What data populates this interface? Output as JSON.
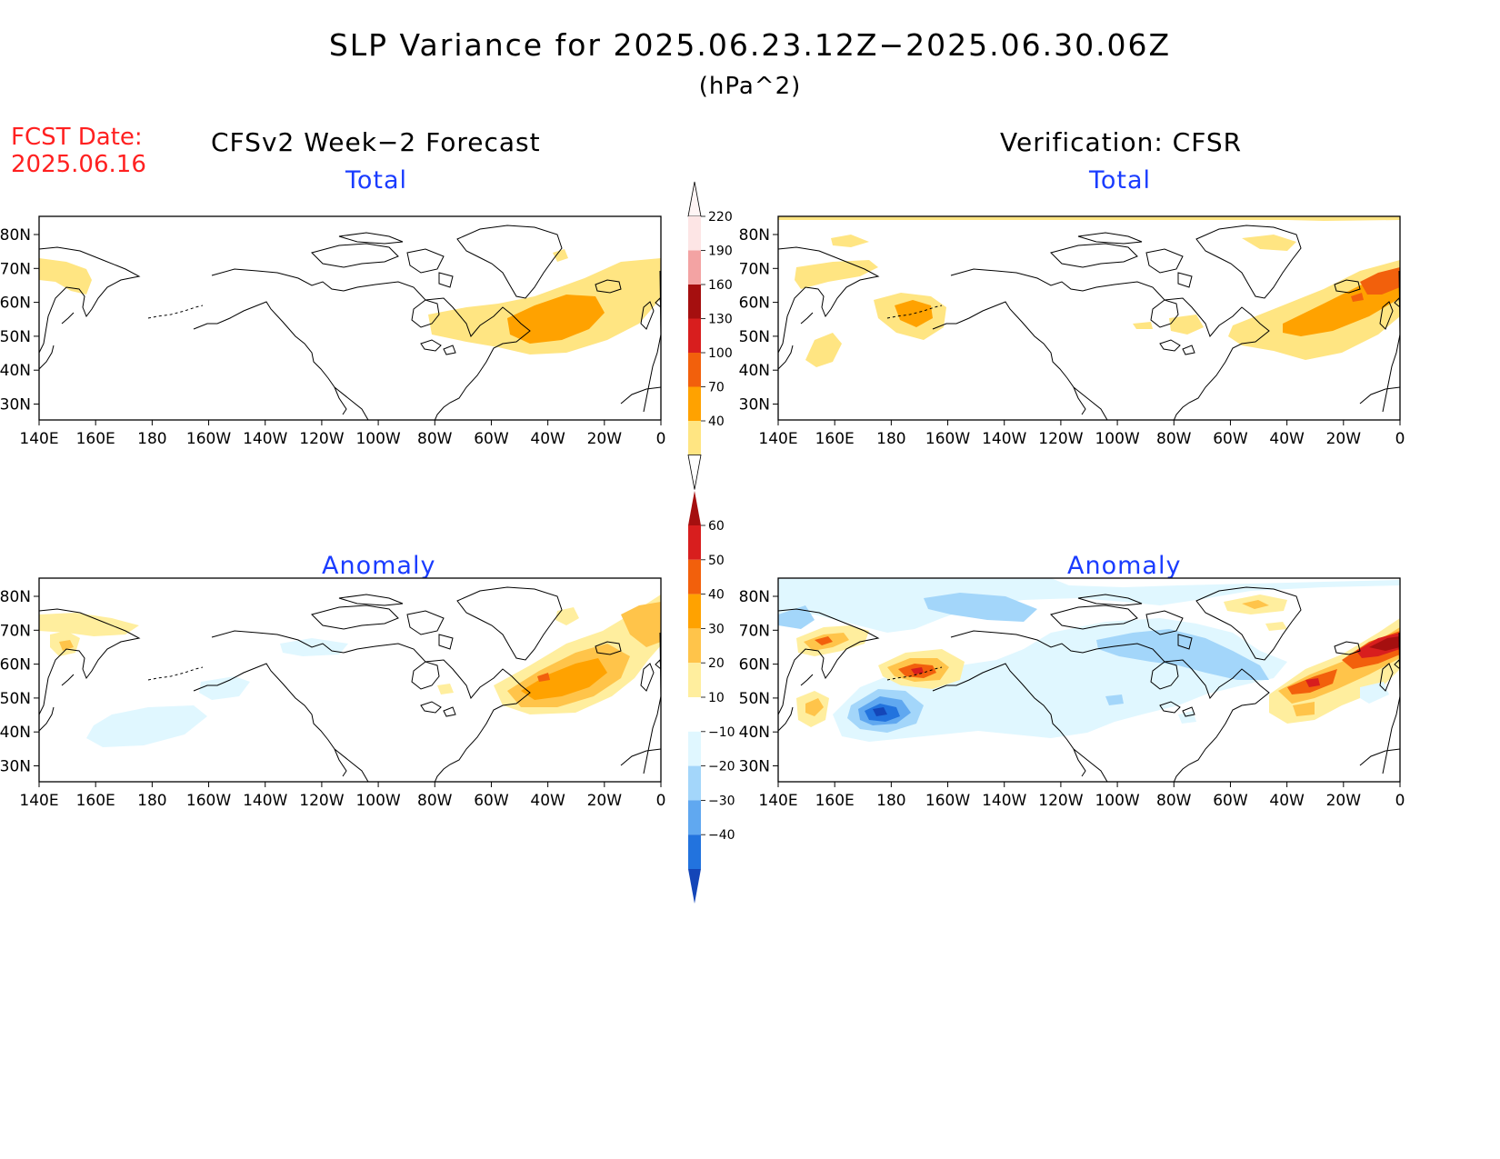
{
  "figure": {
    "title": "SLP Variance for 2025.06.23.12Z−2025.06.30.06Z",
    "units": "(hPa^2)",
    "fcst_date_label": "FCST Date:",
    "fcst_date_value": "2025.06.16",
    "left_header": "CFSv2 Week−2 Forecast",
    "right_header": "Verification: CFSR"
  },
  "panels": [
    {
      "id": "forecast-total",
      "title": "Total"
    },
    {
      "id": "verification-total",
      "title": "Total"
    },
    {
      "id": "forecast-anomaly",
      "title": "Anomaly"
    },
    {
      "id": "verification-anomaly",
      "title": "Anomaly"
    }
  ],
  "map_axes": {
    "lon_ticks": [
      "140E",
      "160E",
      "180",
      "160W",
      "140W",
      "120W",
      "100W",
      "80W",
      "60W",
      "40W",
      "20W",
      "0"
    ],
    "lat_ticks": [
      "80N",
      "70N",
      "60N",
      "50N",
      "40N",
      "30N"
    ]
  },
  "colorbars": {
    "total": {
      "levels": [
        "220",
        "190",
        "160",
        "130",
        "100",
        "70",
        "40"
      ],
      "colors": [
        "#fde5e5",
        "#f3a3a3",
        "#a50f0f",
        "#d81e1e",
        "#f2600c",
        "#ffa200",
        "#ffe582"
      ]
    },
    "anomaly": {
      "levels": [
        "60",
        "50",
        "40",
        "30",
        "20",
        "10",
        "−10",
        "−20",
        "−30",
        "−40"
      ],
      "colors": [
        "#a50f0f",
        "#d81e1e",
        "#f2600c",
        "#ffa200",
        "#ffc44a",
        "#ffee9e",
        "#ffffff",
        "#e0f7ff",
        "#a3d6fa",
        "#60a8f0",
        "#2273de",
        "#1446b8"
      ]
    }
  }
}
